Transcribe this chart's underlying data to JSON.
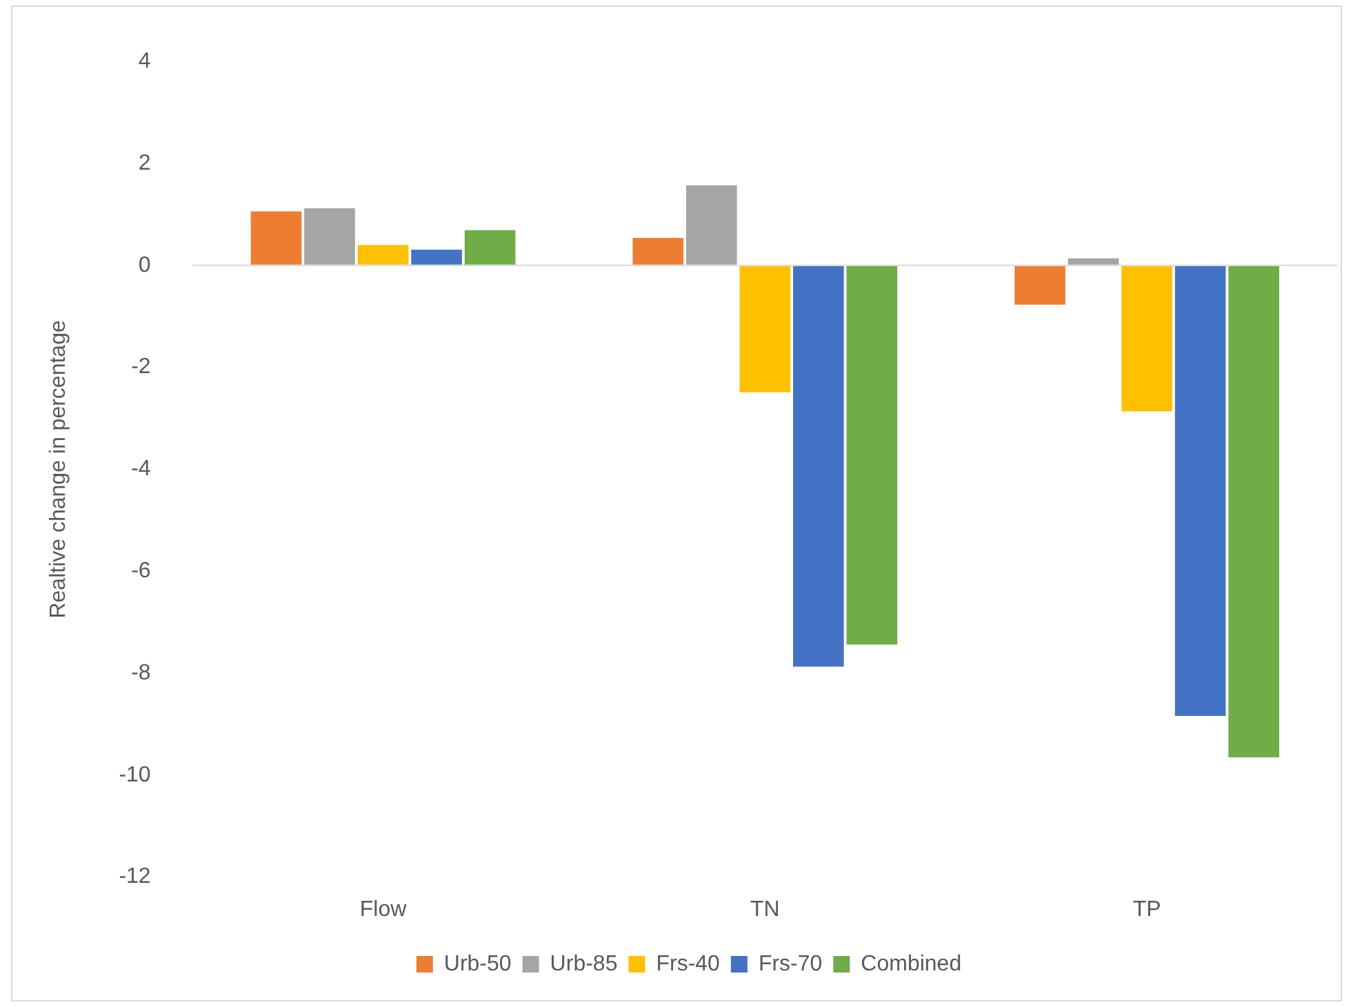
{
  "chart_data": {
    "type": "bar",
    "ylabel": "Realtive change in percentage",
    "categories": [
      "Flow",
      "TN",
      "TP"
    ],
    "series": [
      {
        "name": "Urb-50",
        "color": "#ed7d31",
        "values": [
          1.06,
          0.54,
          -0.77
        ]
      },
      {
        "name": "Urb-85",
        "color": "#a5a5a5",
        "values": [
          1.12,
          1.57,
          0.14
        ]
      },
      {
        "name": "Frs-40",
        "color": "#ffc000",
        "values": [
          0.4,
          -2.49,
          -2.86
        ]
      },
      {
        "name": "Frs-70",
        "color": "#4472c4",
        "values": [
          0.31,
          -7.87,
          -8.84
        ]
      },
      {
        "name": "Combined",
        "color": "#70ad47",
        "values": [
          0.69,
          -7.44,
          -9.65
        ]
      }
    ],
    "ylim": [
      -12,
      4
    ],
    "yticks": [
      -12,
      -10,
      -8,
      -6,
      -4,
      -2,
      0,
      2,
      4
    ],
    "grid": false,
    "legend": "bottom",
    "ref_lines": [
      {
        "axis": "y",
        "value": 0,
        "color": "#d9d9d9"
      }
    ]
  }
}
